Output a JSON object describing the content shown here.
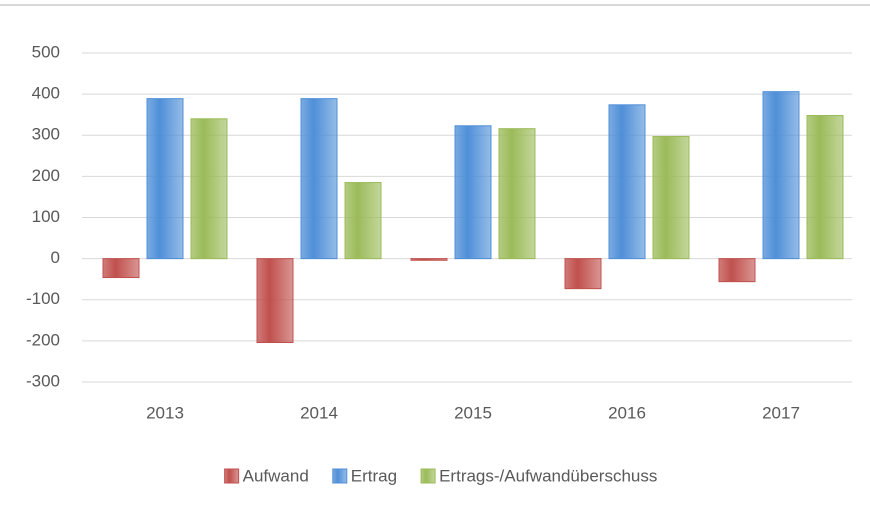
{
  "chart_data": {
    "type": "bar",
    "categories": [
      "2013",
      "2014",
      "2015",
      "2016",
      "2017"
    ],
    "series": [
      {
        "name": "Aufwand",
        "color": "#c0504d",
        "values": [
          -46,
          -204,
          -4,
          -73,
          -56
        ]
      },
      {
        "name": "Ertrag",
        "color": "#4f8fd8",
        "values": [
          389,
          389,
          323,
          374,
          406
        ]
      },
      {
        "name": "Ertrags-/Aufwandüberschuss",
        "color": "#9bbb59",
        "values": [
          340,
          185,
          316,
          297,
          348
        ]
      }
    ],
    "ylim": [
      -300,
      500
    ],
    "yticks": [
      -300,
      -200,
      -100,
      0,
      100,
      200,
      300,
      400,
      500
    ],
    "grid": true,
    "legend": "bottom"
  }
}
